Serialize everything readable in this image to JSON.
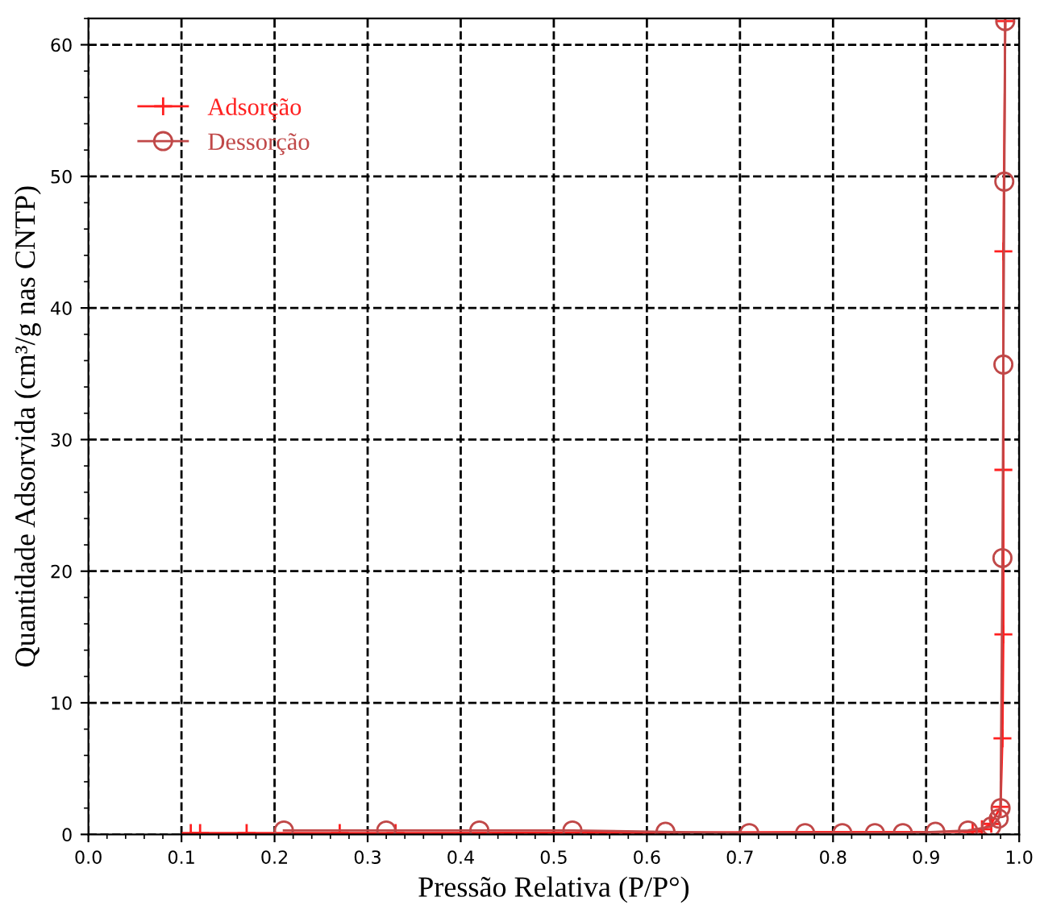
{
  "chart_data": {
    "type": "line",
    "xlabel": "Pressão Relativa (P/P°)",
    "ylabel": "Quantidade Adsorvida (cm³/g nas CNTP)",
    "xlim": [
      0,
      1
    ],
    "ylim": [
      0,
      62
    ],
    "xticks": [
      {
        "value": 0,
        "label": "0.0"
      },
      0.1,
      0.2,
      0.3,
      0.4,
      0.5,
      0.6,
      0.7,
      0.8,
      0.9,
      {
        "value": 1,
        "label": "1.0"
      }
    ],
    "yticks": [
      0,
      10,
      20,
      30,
      40,
      50,
      60
    ],
    "grid": true,
    "legend": "top left",
    "line_style": "solid",
    "series": [
      {
        "name": "Adsorção",
        "color": "#ff2020",
        "marker": "cross",
        "x": [
          0.11,
          0.12,
          0.17,
          0.27,
          0.33,
          0.95,
          0.96,
          0.97,
          0.98,
          0.982,
          0.983,
          0.983,
          0.983,
          0.985
        ],
        "values": [
          0.1,
          0.1,
          0.1,
          0.1,
          0.1,
          0.2,
          0.4,
          0.8,
          2.1,
          7.3,
          15.2,
          27.7,
          44.3,
          61.8
        ]
      },
      {
        "name": "Dessorção",
        "color": "#c04848",
        "marker": "circle",
        "x": [
          0.985,
          0.984,
          0.983,
          0.982,
          0.98,
          0.978,
          0.97,
          0.945,
          0.91,
          0.875,
          0.845,
          0.81,
          0.77,
          0.71,
          0.62,
          0.52,
          0.42,
          0.32,
          0.21
        ],
        "values": [
          61.8,
          49.6,
          35.7,
          21,
          2,
          1.2,
          0.6,
          0.3,
          0.2,
          0.1,
          0.1,
          0.1,
          0.1,
          0.1,
          0.2,
          0.3,
          0.3,
          0.3,
          0.3
        ]
      }
    ]
  }
}
